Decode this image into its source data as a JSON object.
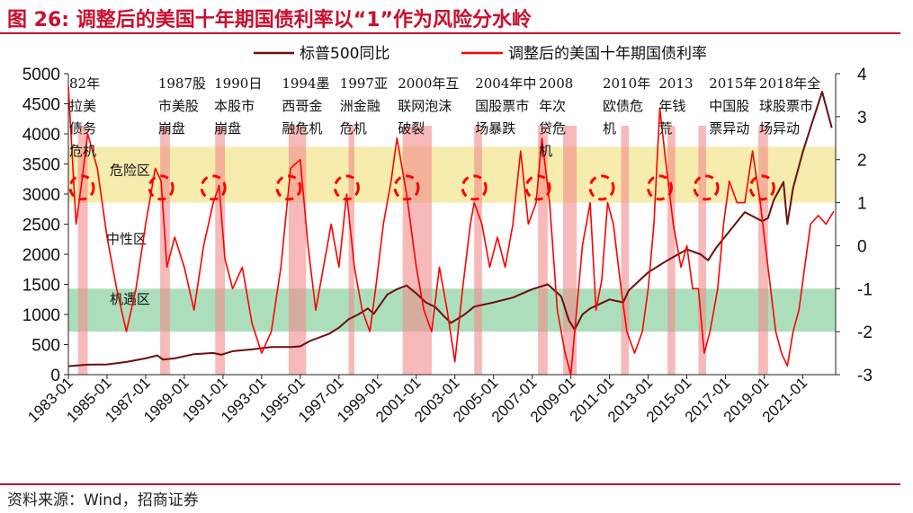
{
  "title": "图 26:  调整后的美国十年期国债利率以“1”作为风险分水岭",
  "source": "资料来源：Wind，招商证券",
  "chart_data": {
    "type": "line",
    "title": "",
    "xlabel": "",
    "ylabel": "",
    "ylim_left": [
      0,
      5000
    ],
    "ylim_right": [
      -3,
      4
    ],
    "left_ticks": [
      0,
      500,
      1000,
      1500,
      2000,
      2500,
      3000,
      3500,
      4000,
      4500,
      5000
    ],
    "right_ticks": [
      -3,
      -2,
      -1,
      0,
      1,
      2,
      3,
      4
    ],
    "x_ticks": [
      "1983-01",
      "1985-01",
      "1987-01",
      "1989-01",
      "1991-01",
      "1993-01",
      "1995-01",
      "1997-01",
      "1999-01",
      "2001-01",
      "2003-01",
      "2005-01",
      "2007-01",
      "2009-01",
      "2011-01",
      "2013-01",
      "2015-01",
      "2017-01",
      "2019-01",
      "2021-01"
    ],
    "x_range": [
      1983.0,
      2022.7
    ],
    "legend": {
      "placement": "top",
      "sp500": "标普500同比",
      "yield": "调整后的美国十年期国债利率"
    },
    "zones": [
      {
        "label": "危险区",
        "y_from": 1,
        "y_to": 2.3,
        "color": "#f5e9a0"
      },
      {
        "label": "中性区",
        "y_from": null,
        "y_to": null,
        "color": null
      },
      {
        "label": "机遇区",
        "y_from": -2,
        "y_to": -1,
        "color": "#9fd8b0"
      }
    ],
    "crisis_bands": [
      [
        1983.5,
        1984.0
      ],
      [
        1987.75,
        1988.25
      ],
      [
        1990.6,
        1991.1
      ],
      [
        1994.4,
        1995.3
      ],
      [
        1997.5,
        1997.8
      ],
      [
        2000.3,
        2001.8
      ],
      [
        2004.0,
        2004.4
      ],
      [
        2007.3,
        2007.8
      ],
      [
        2008.6,
        2009.3
      ],
      [
        2011.6,
        2012.0
      ],
      [
        2014.0,
        2014.4
      ],
      [
        2015.6,
        2016.0
      ],
      [
        2018.7,
        2019.2
      ]
    ],
    "annotations": [
      {
        "x": 1983.0,
        "lines": [
          "82年",
          "拉美",
          "债务",
          "危机"
        ]
      },
      {
        "x": 1987.6,
        "lines": [
          "1987股",
          "市美股",
          "崩盘"
        ]
      },
      {
        "x": 1990.5,
        "lines": [
          "1990日",
          "本股市",
          "崩盘"
        ]
      },
      {
        "x": 1994.0,
        "lines": [
          "1994墨",
          "西哥金",
          "融危机"
        ]
      },
      {
        "x": 1997.0,
        "lines": [
          "1997亚",
          "洲金融",
          "危机"
        ]
      },
      {
        "x": 2000.0,
        "lines": [
          "2000年互",
          "联网泡沫",
          "破裂"
        ]
      },
      {
        "x": 2004.0,
        "lines": [
          "2004年中",
          "国股票市",
          "场暴跌"
        ]
      },
      {
        "x": 2007.3,
        "lines": [
          "2008",
          "年次",
          "贷危",
          "机"
        ]
      },
      {
        "x": 2010.6,
        "lines": [
          "2010年",
          "欧债危",
          "机"
        ]
      },
      {
        "x": 2013.5,
        "lines": [
          "2013",
          "年钱",
          "荒"
        ]
      },
      {
        "x": 2016.1,
        "lines": [
          "2015年",
          "中国股",
          "票异动"
        ]
      },
      {
        "x": 2018.7,
        "lines": [
          "2018年全",
          "球股票市",
          "场异动"
        ]
      }
    ],
    "danger_markers_x": [
      1983.7,
      1987.8,
      1990.5,
      1994.4,
      1997.4,
      2000.5,
      2004.0,
      2007.3,
      2010.6,
      2013.6,
      2016.0,
      2018.9
    ],
    "series": [
      {
        "name": "标普500同比",
        "axis": "left",
        "color": "#6b0f0f",
        "x": [
          1983.0,
          1984.0,
          1985.0,
          1986.0,
          1987.0,
          1987.6,
          1987.9,
          1988.5,
          1989.5,
          1990.5,
          1990.9,
          1991.5,
          1992.5,
          1993.5,
          1994.5,
          1995.0,
          1995.5,
          1996.0,
          1996.5,
          1997.0,
          1997.5,
          1998.0,
          1998.5,
          1998.8,
          1999.5,
          2000.0,
          2000.5,
          2001.0,
          2001.5,
          2002.0,
          2002.5,
          2002.8,
          2003.5,
          2004.0,
          2005.0,
          2006.0,
          2007.0,
          2007.8,
          2008.5,
          2008.9,
          2009.2,
          2009.6,
          2010.0,
          2011.0,
          2011.7,
          2012.0,
          2013.0,
          2014.0,
          2015.0,
          2015.7,
          2016.1,
          2016.5,
          2017.0,
          2018.0,
          2018.9,
          2019.2,
          2019.5,
          2020.0,
          2020.2,
          2020.5,
          2021.0,
          2021.5,
          2022.0,
          2022.5
        ],
        "values": [
          140,
          165,
          170,
          210,
          270,
          320,
          250,
          270,
          340,
          360,
          330,
          390,
          420,
          460,
          460,
          470,
          560,
          620,
          680,
          780,
          920,
          1000,
          1100,
          1010,
          1330,
          1420,
          1480,
          1350,
          1200,
          1120,
          950,
          860,
          1000,
          1130,
          1200,
          1280,
          1420,
          1500,
          1300,
          900,
          750,
          1000,
          1100,
          1250,
          1200,
          1400,
          1700,
          1900,
          2080,
          2000,
          1900,
          2100,
          2300,
          2700,
          2550,
          2600,
          2900,
          3200,
          2500,
          3100,
          3700,
          4200,
          4700,
          4100
        ]
      },
      {
        "name": "调整后的美国十年期国债利率",
        "axis": "right",
        "color": "#ff0000",
        "x": [
          1983.0,
          1983.15,
          1983.4,
          1983.7,
          1984.0,
          1984.5,
          1985.0,
          1985.5,
          1986.0,
          1986.5,
          1987.0,
          1987.5,
          1987.8,
          1988.1,
          1988.5,
          1989.0,
          1989.5,
          1990.0,
          1990.5,
          1990.8,
          1991.1,
          1991.5,
          1992.0,
          1992.5,
          1993.0,
          1993.5,
          1994.0,
          1994.5,
          1995.0,
          1995.4,
          1995.8,
          1996.2,
          1996.6,
          1997.0,
          1997.4,
          1997.8,
          1998.2,
          1998.6,
          1998.9,
          1999.3,
          1999.7,
          2000.0,
          2000.5,
          2001.0,
          2001.4,
          2001.8,
          2002.2,
          2002.6,
          2003.0,
          2003.4,
          2003.8,
          2004.0,
          2004.4,
          2004.8,
          2005.2,
          2005.6,
          2006.0,
          2006.4,
          2006.8,
          2007.2,
          2007.5,
          2007.9,
          2008.3,
          2008.7,
          2009.0,
          2009.3,
          2009.6,
          2010.0,
          2010.3,
          2010.6,
          2010.9,
          2011.2,
          2011.6,
          2011.9,
          2012.3,
          2012.7,
          2013.0,
          2013.3,
          2013.6,
          2013.9,
          2014.3,
          2014.7,
          2015.0,
          2015.3,
          2015.6,
          2015.9,
          2016.2,
          2016.6,
          2016.9,
          2017.2,
          2017.6,
          2018.0,
          2018.4,
          2018.8,
          2019.2,
          2019.6,
          2019.9,
          2020.2,
          2020.5,
          2020.8,
          2021.1,
          2021.4,
          2021.8,
          2022.2,
          2022.6
        ],
        "values": [
          3.7,
          2.5,
          0.5,
          1.5,
          2.6,
          1.8,
          0.2,
          -1.0,
          -2.0,
          -1.0,
          0.5,
          1.8,
          1.5,
          -0.5,
          0.2,
          -0.5,
          -1.5,
          0.0,
          1.0,
          1.4,
          -0.3,
          -1.0,
          -0.5,
          -1.8,
          -2.5,
          -2.0,
          -0.5,
          1.8,
          2.0,
          0.0,
          -1.5,
          -0.5,
          0.5,
          -0.5,
          1.2,
          -0.5,
          -1.5,
          -2.0,
          -1.0,
          0.5,
          1.5,
          2.5,
          1.2,
          -0.5,
          -1.5,
          -2.0,
          -0.5,
          -1.5,
          -2.7,
          -1.0,
          0.5,
          1.0,
          0.5,
          -0.5,
          0.2,
          -0.5,
          0.5,
          2.2,
          0.5,
          1.0,
          2.5,
          1.0,
          -1.5,
          -2.5,
          -3.0,
          -1.5,
          0.0,
          1.0,
          -1.5,
          -0.8,
          1.0,
          0.5,
          -1.0,
          -2.0,
          -2.5,
          -2.0,
          -1.0,
          0.5,
          3.2,
          2.0,
          0.5,
          -0.5,
          0.0,
          -1.0,
          -1.0,
          -2.5,
          -2.0,
          -1.0,
          0.5,
          1.5,
          1.0,
          1.0,
          2.2,
          1.0,
          -0.5,
          -2.0,
          -2.5,
          -2.8,
          -2.0,
          -1.5,
          -0.5,
          0.5,
          0.7,
          0.5,
          0.8
        ]
      }
    ]
  }
}
